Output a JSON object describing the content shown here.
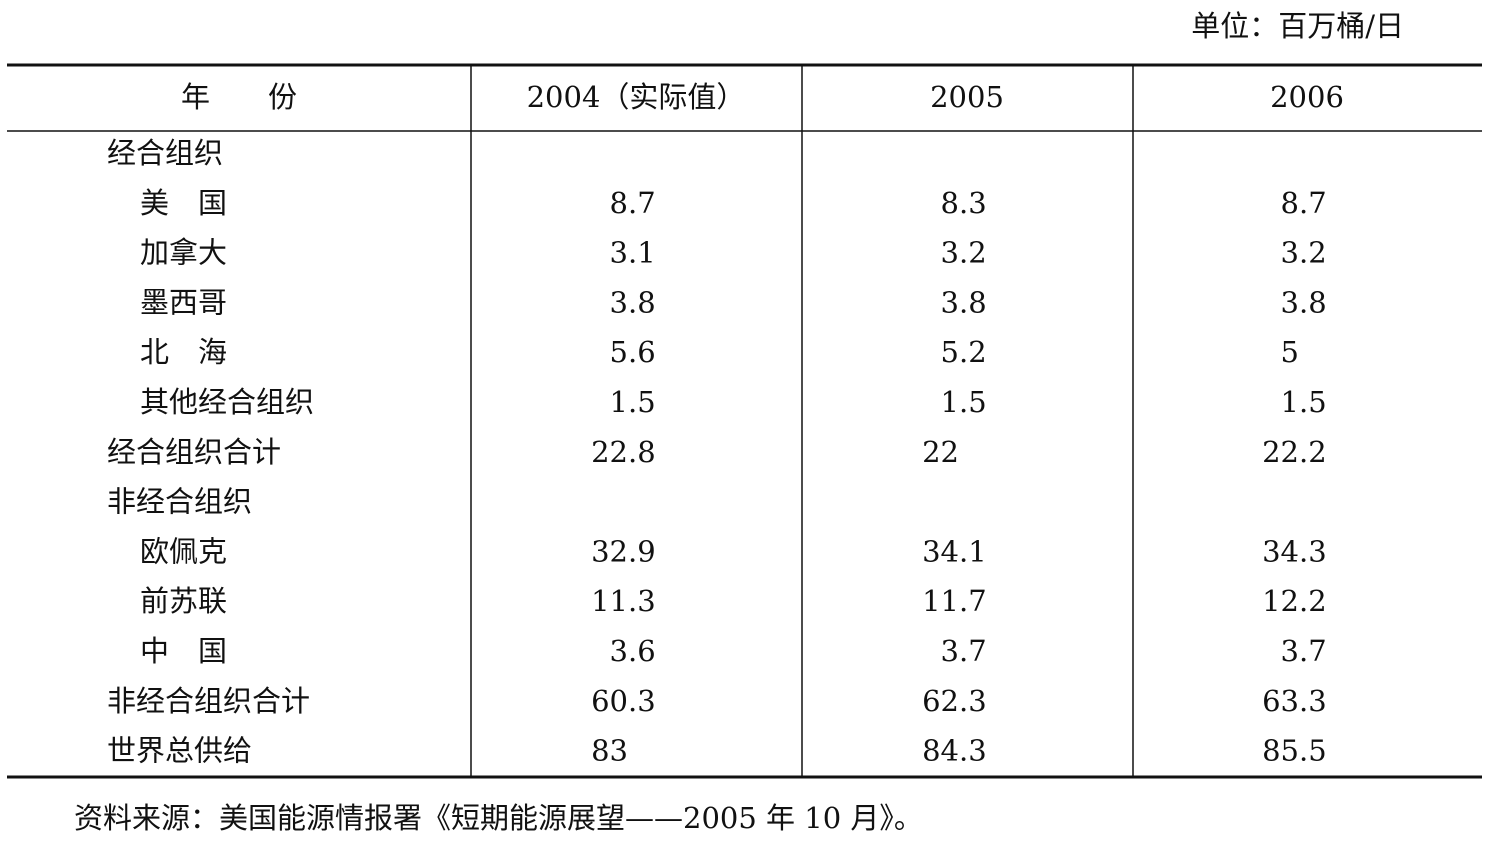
{
  "unit": "单位：百万桶/日",
  "table": {
    "header": [
      "年　　份",
      "2004（实际值）",
      "2005",
      "2006"
    ],
    "sections": [
      {
        "title": "经合组织",
        "rows": [
          {
            "label": "美　国",
            "values": [
              8.7,
              8.3,
              8.7
            ]
          },
          {
            "label": "加拿大",
            "values": [
              3.1,
              3.2,
              3.2
            ]
          },
          {
            "label": "墨西哥",
            "values": [
              3.8,
              3.8,
              3.8
            ]
          },
          {
            "label": "北　海",
            "values": [
              5.6,
              5.2,
              5
            ]
          },
          {
            "label": "其他经合组织",
            "values": [
              1.5,
              1.5,
              1.5
            ]
          }
        ],
        "total": {
          "label": "经合组织合计",
          "values": [
            22.8,
            22,
            22.2
          ]
        }
      },
      {
        "title": "非经合组织",
        "rows": [
          {
            "label": "欧佩克",
            "values": [
              32.9,
              34.1,
              34.3
            ]
          },
          {
            "label": "前苏联",
            "values": [
              11.3,
              11.7,
              12.2
            ]
          },
          {
            "label": "中　国",
            "values": [
              3.6,
              3.7,
              3.7
            ]
          }
        ],
        "total": {
          "label": "非经合组织合计",
          "values": [
            60.3,
            62.3,
            63.3
          ]
        }
      }
    ],
    "grand_total": {
      "label": "世界总供给",
      "values": [
        83,
        84.3,
        85.5
      ]
    }
  },
  "source": "资料来源：美国能源情报署《短期能源展望——2005 年 10 月》。"
}
